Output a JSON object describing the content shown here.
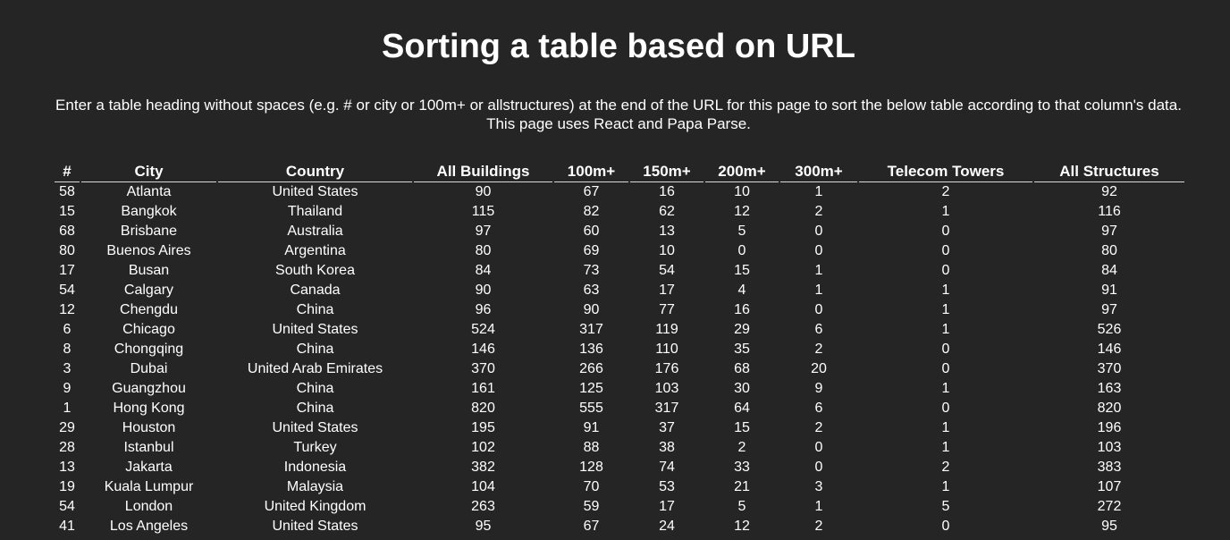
{
  "page": {
    "title": "Sorting a table based on URL",
    "intro_line1": "Enter a table heading without spaces (e.g. # or city or 100m+ or allstructures) at the end of the URL for this page to sort the below table according to that column's data.",
    "intro_line2": "This page uses React and Papa Parse."
  },
  "table": {
    "headers": [
      "#",
      "City",
      "Country",
      "All Buildings",
      "100m+",
      "150m+",
      "200m+",
      "300m+",
      "Telecom Towers",
      "All Structures"
    ],
    "rows": [
      [
        "58",
        "Atlanta",
        "United States",
        "90",
        "67",
        "16",
        "10",
        "1",
        "2",
        "92"
      ],
      [
        "15",
        "Bangkok",
        "Thailand",
        "115",
        "82",
        "62",
        "12",
        "2",
        "1",
        "116"
      ],
      [
        "68",
        "Brisbane",
        "Australia",
        "97",
        "60",
        "13",
        "5",
        "0",
        "0",
        "97"
      ],
      [
        "80",
        "Buenos Aires",
        "Argentina",
        "80",
        "69",
        "10",
        "0",
        "0",
        "0",
        "80"
      ],
      [
        "17",
        "Busan",
        "South Korea",
        "84",
        "73",
        "54",
        "15",
        "1",
        "0",
        "84"
      ],
      [
        "54",
        "Calgary",
        "Canada",
        "90",
        "63",
        "17",
        "4",
        "1",
        "1",
        "91"
      ],
      [
        "12",
        "Chengdu",
        "China",
        "96",
        "90",
        "77",
        "16",
        "0",
        "1",
        "97"
      ],
      [
        "6",
        "Chicago",
        "United States",
        "524",
        "317",
        "119",
        "29",
        "6",
        "1",
        "526"
      ],
      [
        "8",
        "Chongqing",
        "China",
        "146",
        "136",
        "110",
        "35",
        "2",
        "0",
        "146"
      ],
      [
        "3",
        "Dubai",
        "United Arab Emirates",
        "370",
        "266",
        "176",
        "68",
        "20",
        "0",
        "370"
      ],
      [
        "9",
        "Guangzhou",
        "China",
        "161",
        "125",
        "103",
        "30",
        "9",
        "1",
        "163"
      ],
      [
        "1",
        "Hong Kong",
        "China",
        "820",
        "555",
        "317",
        "64",
        "6",
        "0",
        "820"
      ],
      [
        "29",
        "Houston",
        "United States",
        "195",
        "91",
        "37",
        "15",
        "2",
        "1",
        "196"
      ],
      [
        "28",
        "Istanbul",
        "Turkey",
        "102",
        "88",
        "38",
        "2",
        "0",
        "1",
        "103"
      ],
      [
        "13",
        "Jakarta",
        "Indonesia",
        "382",
        "128",
        "74",
        "33",
        "0",
        "2",
        "383"
      ],
      [
        "19",
        "Kuala Lumpur",
        "Malaysia",
        "104",
        "70",
        "53",
        "21",
        "3",
        "1",
        "107"
      ],
      [
        "54",
        "London",
        "United Kingdom",
        "263",
        "59",
        "17",
        "5",
        "1",
        "5",
        "272"
      ],
      [
        "41",
        "Los Angeles",
        "United States",
        "95",
        "67",
        "24",
        "12",
        "2",
        "0",
        "95"
      ]
    ]
  }
}
